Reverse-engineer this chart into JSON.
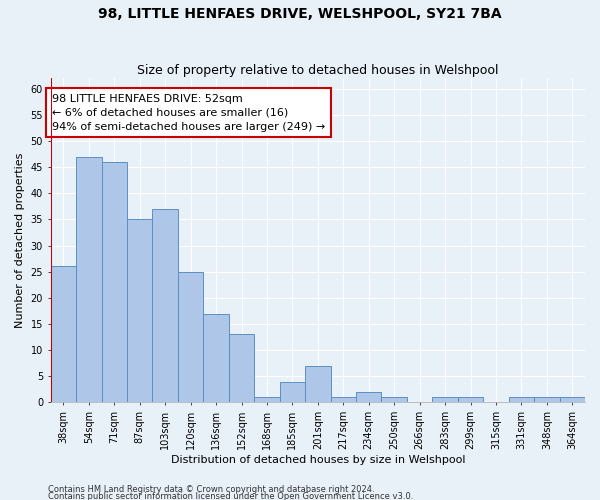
{
  "title": "98, LITTLE HENFAES DRIVE, WELSHPOOL, SY21 7BA",
  "subtitle": "Size of property relative to detached houses in Welshpool",
  "xlabel": "Distribution of detached houses by size in Welshpool",
  "ylabel": "Number of detached properties",
  "categories": [
    "38sqm",
    "54sqm",
    "71sqm",
    "87sqm",
    "103sqm",
    "120sqm",
    "136sqm",
    "152sqm",
    "168sqm",
    "185sqm",
    "201sqm",
    "217sqm",
    "234sqm",
    "250sqm",
    "266sqm",
    "283sqm",
    "299sqm",
    "315sqm",
    "331sqm",
    "348sqm",
    "364sqm"
  ],
  "values": [
    26,
    47,
    46,
    35,
    37,
    25,
    17,
    13,
    1,
    4,
    7,
    1,
    2,
    1,
    0,
    1,
    1,
    0,
    1,
    1,
    1
  ],
  "bar_color": "#aec6e8",
  "bar_edge_color": "#5b8fc5",
  "vline_pos": -0.5,
  "annotation_lines": [
    "98 LITTLE HENFAES DRIVE: 52sqm",
    "← 6% of detached houses are smaller (16)",
    "94% of semi-detached houses are larger (249) →"
  ],
  "annotation_box_color": "#ffffff",
  "annotation_box_edge": "#cc0000",
  "vline_color": "#cc0000",
  "ylim": [
    0,
    62
  ],
  "yticks": [
    0,
    5,
    10,
    15,
    20,
    25,
    30,
    35,
    40,
    45,
    50,
    55,
    60
  ],
  "footer1": "Contains HM Land Registry data © Crown copyright and database right 2024.",
  "footer2": "Contains public sector information licensed under the Open Government Licence v3.0.",
  "bg_color": "#e8f0f8",
  "grid_color": "#ffffff",
  "title_fontsize": 10,
  "subtitle_fontsize": 9,
  "axis_label_fontsize": 8,
  "tick_fontsize": 7,
  "annotation_fontsize": 8,
  "footer_fontsize": 6
}
